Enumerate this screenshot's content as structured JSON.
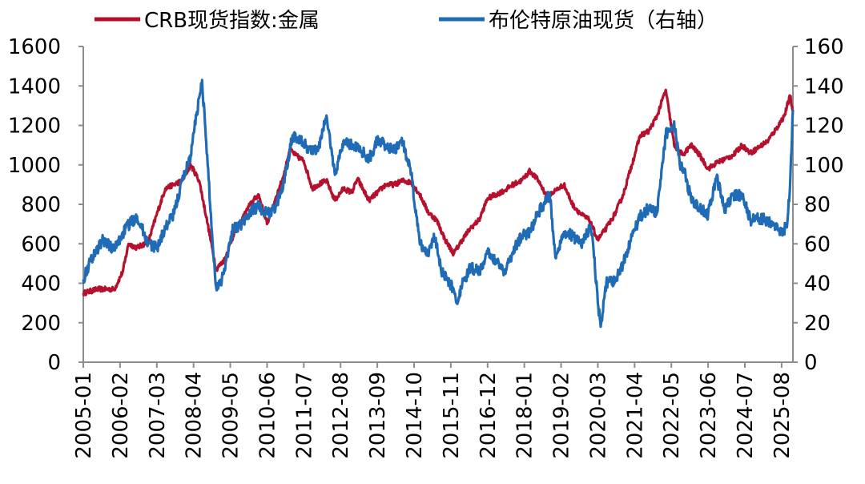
{
  "chart_data": {
    "type": "line",
    "title": "",
    "xlabel": "",
    "ylabel": "",
    "y2label": "",
    "ylim": [
      0,
      1600
    ],
    "y2lim": [
      0,
      160
    ],
    "yticks": [
      "0",
      "200",
      "400",
      "600",
      "800",
      "1000",
      "1200",
      "1400",
      "1600"
    ],
    "y2ticks": [
      "0",
      "20",
      "40",
      "60",
      "80",
      "100",
      "120",
      "140",
      "160"
    ],
    "xticks": [
      "2005-01",
      "2006-02",
      "2007-03",
      "2008-04",
      "2009-05",
      "2010-06",
      "2011-07",
      "2012-08",
      "2013-09",
      "2014-10",
      "2015-11",
      "2016-12",
      "2018-01",
      "2019-02",
      "2020-03",
      "2021-04",
      "2022-05",
      "2023-06",
      "2024-07",
      "2025-08"
    ],
    "xlim": [
      "2005-01",
      "2025-12"
    ],
    "legend_position": "top",
    "grid": false,
    "series": [
      {
        "name": "CRB现货指数:金属",
        "axis": "left",
        "color": "#B5112E",
        "points": [
          [
            "2005-01",
            350
          ],
          [
            "2005-06",
            370
          ],
          [
            "2005-12",
            370
          ],
          [
            "2006-03",
            460
          ],
          [
            "2006-05",
            600
          ],
          [
            "2006-08",
            580
          ],
          [
            "2006-12",
            610
          ],
          [
            "2007-03",
            750
          ],
          [
            "2007-06",
            880
          ],
          [
            "2007-09",
            900
          ],
          [
            "2007-12",
            920
          ],
          [
            "2008-03",
            1000
          ],
          [
            "2008-06",
            920
          ],
          [
            "2008-09",
            700
          ],
          [
            "2008-12",
            470
          ],
          [
            "2009-03",
            520
          ],
          [
            "2009-06",
            640
          ],
          [
            "2009-09",
            720
          ],
          [
            "2009-12",
            800
          ],
          [
            "2010-03",
            850
          ],
          [
            "2010-06",
            700
          ],
          [
            "2010-09",
            830
          ],
          [
            "2010-12",
            950
          ],
          [
            "2011-02",
            1080
          ],
          [
            "2011-04",
            1050
          ],
          [
            "2011-07",
            1020
          ],
          [
            "2011-10",
            880
          ],
          [
            "2011-12",
            900
          ],
          [
            "2012-03",
            920
          ],
          [
            "2012-06",
            820
          ],
          [
            "2012-09",
            880
          ],
          [
            "2012-12",
            860
          ],
          [
            "2013-02",
            930
          ],
          [
            "2013-06",
            820
          ],
          [
            "2013-09",
            860
          ],
          [
            "2013-12",
            900
          ],
          [
            "2014-03",
            900
          ],
          [
            "2014-06",
            920
          ],
          [
            "2014-09",
            910
          ],
          [
            "2014-12",
            850
          ],
          [
            "2015-03",
            760
          ],
          [
            "2015-06",
            720
          ],
          [
            "2015-09",
            620
          ],
          [
            "2015-12",
            550
          ],
          [
            "2016-03",
            620
          ],
          [
            "2016-06",
            680
          ],
          [
            "2016-09",
            720
          ],
          [
            "2016-12",
            830
          ],
          [
            "2017-03",
            850
          ],
          [
            "2017-06",
            870
          ],
          [
            "2017-09",
            900
          ],
          [
            "2017-12",
            920
          ],
          [
            "2018-03",
            970
          ],
          [
            "2018-06",
            920
          ],
          [
            "2018-09",
            840
          ],
          [
            "2018-12",
            870
          ],
          [
            "2019-03",
            900
          ],
          [
            "2019-06",
            800
          ],
          [
            "2019-09",
            750
          ],
          [
            "2019-12",
            720
          ],
          [
            "2020-03",
            620
          ],
          [
            "2020-06",
            680
          ],
          [
            "2020-09",
            750
          ],
          [
            "2020-12",
            850
          ],
          [
            "2021-03",
            1000
          ],
          [
            "2021-06",
            1150
          ],
          [
            "2021-09",
            1170
          ],
          [
            "2021-12",
            1250
          ],
          [
            "2022-03",
            1380
          ],
          [
            "2022-06",
            1100
          ],
          [
            "2022-09",
            1050
          ],
          [
            "2022-12",
            1100
          ],
          [
            "2023-03",
            1050
          ],
          [
            "2023-06",
            980
          ],
          [
            "2023-09",
            1010
          ],
          [
            "2023-12",
            1030
          ],
          [
            "2024-03",
            1050
          ],
          [
            "2024-06",
            1100
          ],
          [
            "2024-09",
            1060
          ],
          [
            "2024-12",
            1090
          ],
          [
            "2025-03",
            1120
          ],
          [
            "2025-06",
            1180
          ],
          [
            "2025-09",
            1250
          ],
          [
            "2025-11",
            1350
          ],
          [
            "2025-12",
            1270
          ]
        ]
      },
      {
        "name": "布伦特原油现货（右轴）",
        "axis": "right",
        "color": "#1F6BB5",
        "points": [
          [
            "2005-01",
            42
          ],
          [
            "2005-04",
            53
          ],
          [
            "2005-08",
            62
          ],
          [
            "2005-12",
            57
          ],
          [
            "2006-04",
            68
          ],
          [
            "2006-08",
            74
          ],
          [
            "2006-12",
            60
          ],
          [
            "2007-03",
            58
          ],
          [
            "2007-06",
            68
          ],
          [
            "2007-09",
            75
          ],
          [
            "2007-12",
            92
          ],
          [
            "2008-03",
            105
          ],
          [
            "2008-05",
            125
          ],
          [
            "2008-07",
            143
          ],
          [
            "2008-09",
            100
          ],
          [
            "2008-11",
            55
          ],
          [
            "2008-12",
            38
          ],
          [
            "2009-02",
            42
          ],
          [
            "2009-06",
            68
          ],
          [
            "2009-09",
            70
          ],
          [
            "2009-12",
            76
          ],
          [
            "2010-03",
            79
          ],
          [
            "2010-06",
            75
          ],
          [
            "2010-09",
            78
          ],
          [
            "2010-12",
            92
          ],
          [
            "2011-03",
            115
          ],
          [
            "2011-06",
            112
          ],
          [
            "2011-09",
            108
          ],
          [
            "2011-12",
            107
          ],
          [
            "2012-03",
            125
          ],
          [
            "2012-06",
            95
          ],
          [
            "2012-09",
            112
          ],
          [
            "2012-12",
            110
          ],
          [
            "2013-03",
            108
          ],
          [
            "2013-06",
            103
          ],
          [
            "2013-09",
            112
          ],
          [
            "2013-12",
            110
          ],
          [
            "2014-03",
            107
          ],
          [
            "2014-06",
            112
          ],
          [
            "2014-09",
            95
          ],
          [
            "2014-12",
            60
          ],
          [
            "2015-03",
            55
          ],
          [
            "2015-05",
            65
          ],
          [
            "2015-08",
            45
          ],
          [
            "2015-12",
            37
          ],
          [
            "2016-01",
            30
          ],
          [
            "2016-03",
            39
          ],
          [
            "2016-06",
            48
          ],
          [
            "2016-09",
            46
          ],
          [
            "2016-12",
            55
          ],
          [
            "2017-03",
            52
          ],
          [
            "2017-06",
            46
          ],
          [
            "2017-09",
            56
          ],
          [
            "2017-12",
            64
          ],
          [
            "2018-03",
            66
          ],
          [
            "2018-06",
            76
          ],
          [
            "2018-10",
            85
          ],
          [
            "2018-12",
            53
          ],
          [
            "2019-03",
            66
          ],
          [
            "2019-06",
            64
          ],
          [
            "2019-09",
            60
          ],
          [
            "2019-12",
            67
          ],
          [
            "2020-01",
            65
          ],
          [
            "2020-03",
            30
          ],
          [
            "2020-04",
            18
          ],
          [
            "2020-06",
            40
          ],
          [
            "2020-09",
            41
          ],
          [
            "2020-12",
            50
          ],
          [
            "2021-03",
            64
          ],
          [
            "2021-06",
            74
          ],
          [
            "2021-09",
            78
          ],
          [
            "2021-12",
            76
          ],
          [
            "2022-03",
            115
          ],
          [
            "2022-06",
            122
          ],
          [
            "2022-08",
            100
          ],
          [
            "2022-10",
            95
          ],
          [
            "2022-12",
            82
          ],
          [
            "2023-03",
            78
          ],
          [
            "2023-06",
            75
          ],
          [
            "2023-09",
            94
          ],
          [
            "2023-12",
            77
          ],
          [
            "2024-03",
            85
          ],
          [
            "2024-06",
            84
          ],
          [
            "2024-09",
            72
          ],
          [
            "2024-12",
            73
          ],
          [
            "2025-03",
            72
          ],
          [
            "2025-06",
            68
          ],
          [
            "2025-08",
            65
          ],
          [
            "2025-10",
            70
          ],
          [
            "2025-11",
            90
          ],
          [
            "2025-12",
            128
          ]
        ]
      }
    ]
  }
}
